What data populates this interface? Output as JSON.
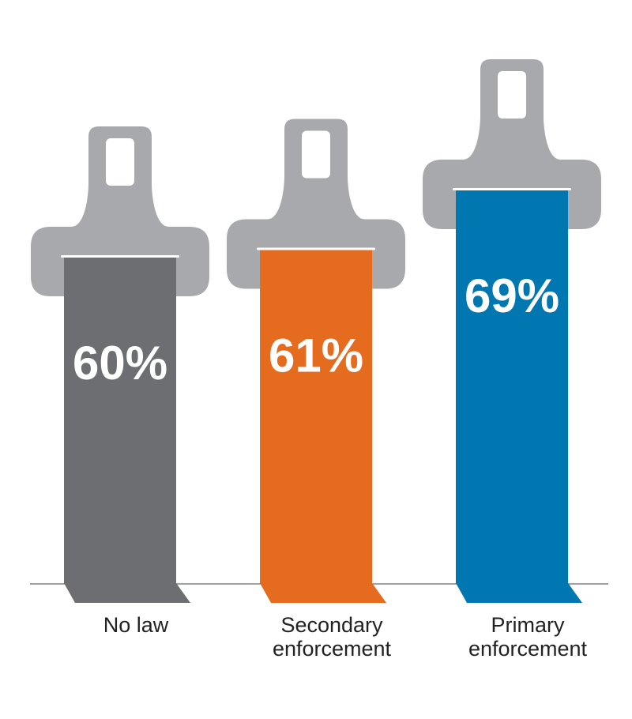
{
  "chart_data": {
    "type": "bar",
    "categories": [
      [
        "No law"
      ],
      [
        "Secondary",
        "enforcement"
      ],
      [
        "Primary",
        "enforcement"
      ]
    ],
    "values": [
      60,
      61,
      69
    ],
    "value_labels": [
      "60%",
      "61%",
      "69%"
    ],
    "title": "",
    "xlabel": "",
    "ylabel": "",
    "legend": "none",
    "grid": false,
    "bar_icon": "seatbelt-buckle-icon",
    "colors": {
      "bars": [
        "#6d6e71",
        "#e56b1f",
        "#0077b0"
      ],
      "buckle": "#a7a9ac",
      "baseline": "#808285"
    }
  }
}
